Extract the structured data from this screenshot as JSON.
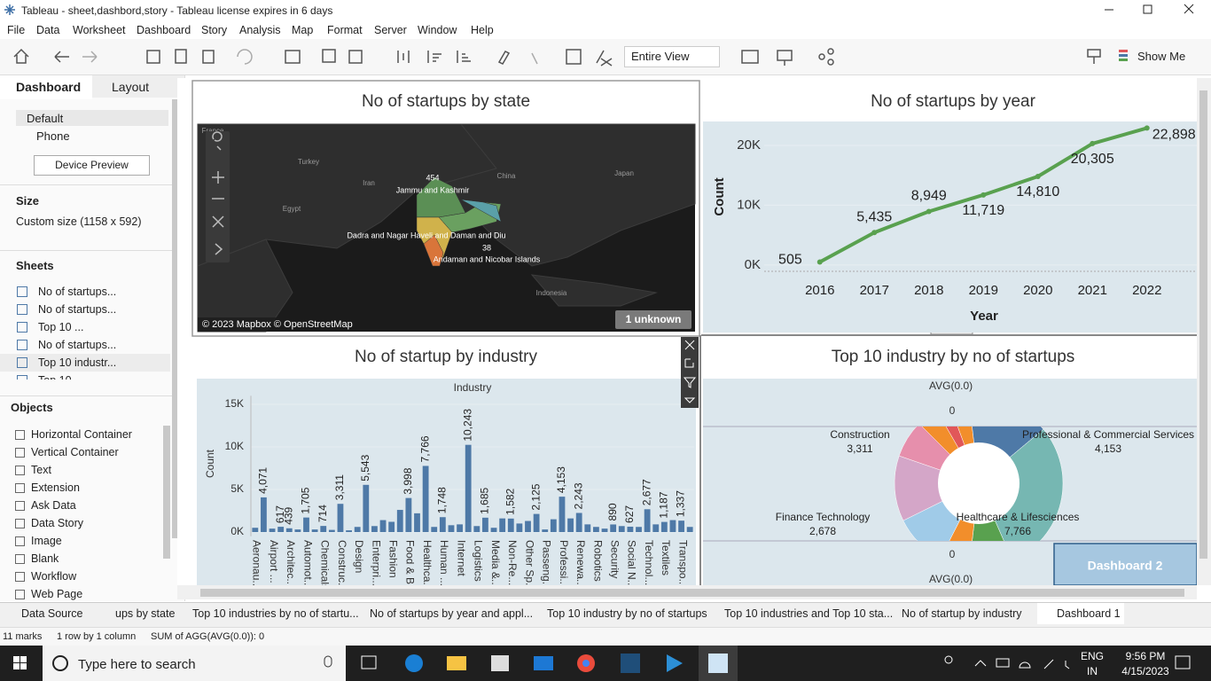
{
  "window": {
    "title": "Tableau - sheet,dashbord,story - Tableau license expires in 6 days"
  },
  "menu": [
    "File",
    "Data",
    "Worksheet",
    "Dashboard",
    "Story",
    "Analysis",
    "Map",
    "Format",
    "Server",
    "Window",
    "Help"
  ],
  "toolbar": {
    "fit": "Entire View",
    "show_me": "Show Me"
  },
  "side_panel": {
    "tabs": [
      "Dashboard",
      "Layout"
    ],
    "devices": [
      "Default",
      "Phone"
    ],
    "device_preview": "Device Preview",
    "size_heading": "Size",
    "size": "Custom size (1158 x 592)",
    "sheets_heading": "Sheets",
    "sheets": [
      "No of startups...",
      "No of startups...",
      "Top 10 ...",
      "No of startups...",
      "Top 10 industr...",
      "Top 10"
    ],
    "objects_heading": "Objects",
    "objects": [
      "Horizontal Container",
      "Vertical Container",
      "Text",
      "Extension",
      "Ask Data",
      "Data Story",
      "Image",
      "Blank",
      "Workflow",
      "Web Page"
    ]
  },
  "chart_data": [
    {
      "type": "map",
      "title": "No of startups by state",
      "places": [
        "France",
        "Turkey",
        "Iran",
        "China",
        "Japan",
        "Egypt",
        "Indonesia"
      ],
      "labels": [
        {
          "name": "Jammu and Kashmir",
          "value": 454
        },
        {
          "name": "Dadra and Nagar Haveli and Daman and Diu"
        },
        {
          "name": "Andaman and Nicobar Islands",
          "value": 38
        }
      ],
      "attribution": "© 2023 Mapbox © OpenStreetMap",
      "unknown": "1 unknown"
    },
    {
      "type": "line",
      "title": "No of startups by year",
      "x_label": "Year",
      "y_label": "Count",
      "categories": [
        "2016",
        "2017",
        "2018",
        "2019",
        "2020",
        "2021",
        "2022"
      ],
      "values": [
        505,
        5435,
        8949,
        11719,
        14810,
        20305,
        22898
      ],
      "value_labels": [
        "505",
        "5,435",
        "8,949",
        "11,719",
        "14,810",
        "20,305",
        "22,898"
      ],
      "color": "#59a14f",
      "ylim": [
        -1500,
        24000
      ],
      "yticks": [
        {
          "value": 0,
          "label": "0K"
        },
        {
          "value": 10000,
          "label": "10K"
        },
        {
          "value": 20000,
          "label": "20K"
        }
      ],
      "grid": true
    },
    {
      "type": "bar",
      "title": "No of startup by industry",
      "header": "Industry",
      "y_label": "Count",
      "categories": [
        "Aeronau...",
        null,
        "Airport ...",
        null,
        "Architec...",
        null,
        "Automot...",
        null,
        "Chemicals",
        null,
        "Construc...",
        null,
        "Design",
        null,
        "Enterpri...",
        null,
        "Fashion",
        null,
        "Food & B...",
        null,
        "Healthca...",
        null,
        "Human ...",
        null,
        "Internet",
        null,
        "Logistics",
        null,
        "Media &...",
        null,
        "Non-Re...",
        null,
        "Other Sp...",
        null,
        "Passeng...",
        null,
        "Professi...",
        null,
        "Renewa...",
        null,
        "Robotics",
        null,
        "Security",
        null,
        "Social N...",
        null,
        "Technol...",
        null,
        "Textiles",
        null,
        "Transpo...",
        null
      ],
      "values": [
        500,
        4071,
        400,
        617,
        439,
        300,
        1705,
        300,
        714,
        250,
        3311,
        200,
        600,
        5543,
        700,
        1400,
        1200,
        2600,
        3998,
        2200,
        7766,
        600,
        1748,
        800,
        900,
        10243,
        700,
        1685,
        500,
        1600,
        1582,
        1000,
        1300,
        2125,
        300,
        1500,
        4153,
        1600,
        2243,
        900,
        600,
        400,
        890,
        700,
        627,
        600,
        2677,
        900,
        1187,
        1400,
        1337,
        600
      ],
      "value_labels": [
        null,
        "4,071",
        null,
        "617",
        "439",
        null,
        "1,705",
        null,
        "714",
        null,
        "3,311",
        null,
        null,
        "5,543",
        null,
        null,
        null,
        null,
        "3,998",
        null,
        "7,766",
        null,
        "1,748",
        null,
        null,
        "10,243",
        null,
        "1,685",
        null,
        null,
        "1,582",
        null,
        null,
        "2,125",
        null,
        null,
        "4,153",
        null,
        "2,243",
        null,
        null,
        null,
        "890",
        null,
        "627",
        null,
        "2,677",
        null,
        "1,187",
        null,
        "1,337",
        null
      ],
      "color": "#4e79a7",
      "ylim": [
        -500,
        16000
      ],
      "yticks": [
        {
          "value": 0,
          "label": "0K"
        },
        {
          "value": 5000,
          "label": "5K"
        },
        {
          "value": 10000,
          "label": "10K"
        },
        {
          "value": 15000,
          "label": "15K"
        }
      ],
      "grid": true
    },
    {
      "type": "pie",
      "title": "Top 10 industry by no of startups",
      "axis_label": "AVG(0.0)",
      "axis_ticks": [
        0
      ],
      "categories": [
        null,
        null,
        null,
        "Professional & Commercial Services",
        "Healthcare & Lifesciences",
        null,
        null,
        "Finance Technology",
        "Construction",
        null
      ],
      "values": [
        1100,
        700,
        1000,
        4153,
        7766,
        2200,
        1500,
        2678,
        3311,
        1900
      ],
      "value_labels": [
        null,
        null,
        null,
        "4,153",
        "7,766",
        null,
        null,
        "2,678",
        "3,311",
        null
      ],
      "colors": [
        "#f28e2b",
        "#e15759",
        "#f28e2b",
        "#4e79a7",
        "#76b7b2",
        "#59a14f",
        "#f28e2b",
        "#a0cbe8",
        "#d4a6c8",
        "#e68fac"
      ]
    }
  ],
  "dashboard_button": "Dashboard 2",
  "tabs": [
    "Data Source",
    "ups by state",
    "Top 10 industries by no of startu...",
    "No of startups by year  and appl...",
    "Top 10 industry by no of startups",
    "Top 10 industries and Top 10 sta...",
    "No of startup by industry",
    "Dashboard 1"
  ],
  "status_bar": [
    "11 marks",
    "1 row by 1 column",
    "SUM of AGG(AVG(0.0)): 0"
  ],
  "taskbar": {
    "search": "Type here to search",
    "lang": "ENG",
    "region": "IN",
    "time": "9:56 PM",
    "date": "4/15/2023"
  }
}
